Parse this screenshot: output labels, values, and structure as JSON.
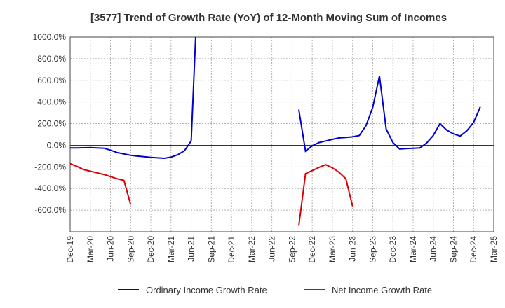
{
  "chart_data": {
    "type": "line",
    "title": "[3577]  Trend of Growth Rate (YoY) of 12-Month Moving Sum of Incomes",
    "xlabel": "",
    "ylabel": "",
    "ylim": [
      -800,
      1000
    ],
    "y_ticks": [
      1000,
      800,
      600,
      400,
      200,
      0,
      -200,
      -400,
      -600
    ],
    "y_tick_labels": [
      "1000.0%",
      "800.0%",
      "600.0%",
      "400.0%",
      "200.0%",
      "0.0%",
      "-200.0%",
      "-400.0%",
      "-600.0%"
    ],
    "x_tick_labels": [
      "Dec-19",
      "Mar-20",
      "Jun-20",
      "Sep-20",
      "Dec-20",
      "Mar-21",
      "Jun-21",
      "Sep-21",
      "Dec-21",
      "Mar-22",
      "Jun-22",
      "Sep-22",
      "Dec-22",
      "Mar-23",
      "Jun-23",
      "Sep-23",
      "Dec-23",
      "Mar-24",
      "Jun-24",
      "Sep-24",
      "Dec-24",
      "Mar-25"
    ],
    "grid": true,
    "legend_position": "bottom",
    "series": [
      {
        "name": "Ordinary Income Growth Rate",
        "color": "#0000cc",
        "values": [
          -25,
          -24,
          -23,
          -22,
          -24,
          -27,
          -45,
          -68,
          -80,
          -92,
          -100,
          -106,
          -112,
          -116,
          -120,
          -110,
          -88,
          -50,
          40,
          1500,
          null,
          null,
          null,
          null,
          null,
          null,
          null,
          null,
          null,
          null,
          null,
          null,
          null,
          null,
          330,
          -55,
          -5,
          25,
          40,
          55,
          68,
          72,
          78,
          90,
          180,
          350,
          640,
          150,
          25,
          -35,
          -30,
          -28,
          -25,
          20,
          90,
          200,
          140,
          105,
          85,
          135,
          210,
          355,
          null
        ]
      },
      {
        "name": "Net Income Growth Rate",
        "color": "#dd0000",
        "values": [
          -170,
          -195,
          -225,
          -240,
          -255,
          -270,
          -290,
          -310,
          -325,
          -550,
          null,
          null,
          null,
          null,
          null,
          null,
          null,
          null,
          null,
          null,
          null,
          null,
          null,
          null,
          null,
          null,
          null,
          null,
          null,
          null,
          null,
          null,
          null,
          null,
          -745,
          -262,
          -235,
          -205,
          -180,
          -208,
          -250,
          -310,
          -565,
          null,
          null,
          null,
          null,
          null,
          null,
          null,
          null,
          null,
          null,
          null,
          null,
          null,
          null,
          null,
          null,
          null,
          null,
          null,
          null
        ]
      }
    ]
  }
}
